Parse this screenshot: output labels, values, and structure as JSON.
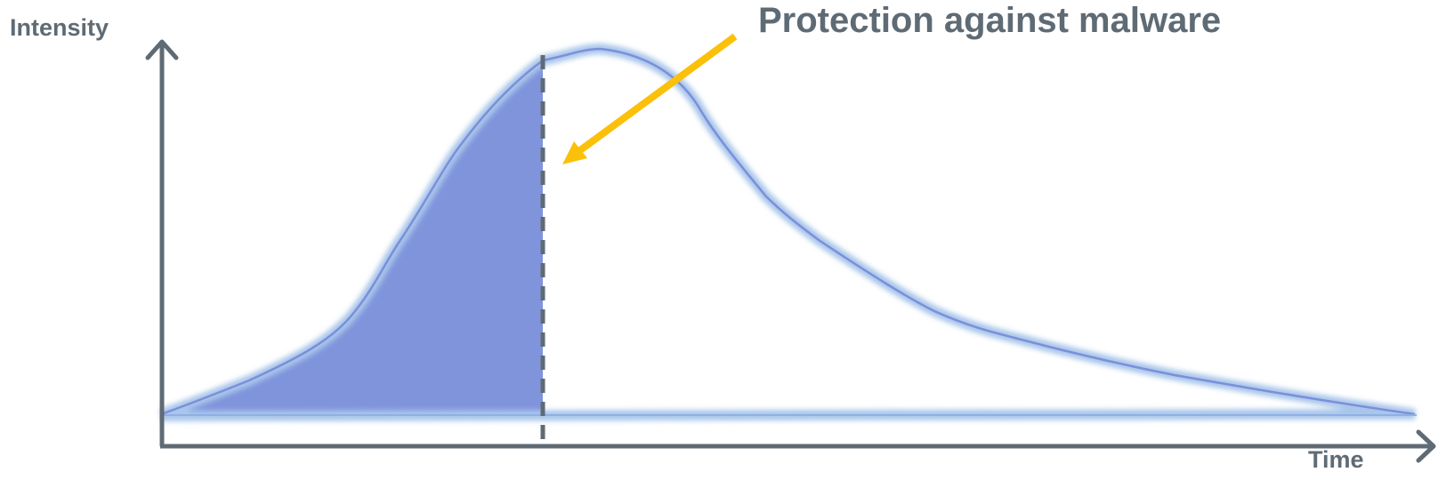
{
  "diagram": {
    "y_axis_label": "Intensity",
    "x_axis_label": "Time",
    "annotation": "Protection against malware"
  },
  "colors": {
    "axis": "#5f6b74",
    "curve": "#7b8fdb",
    "curve_glow": "#a9c6ea",
    "fill": "#8094dc",
    "arrow": "#fbc00a",
    "divider": "#5f6b74",
    "text": "#5f6b74"
  }
}
